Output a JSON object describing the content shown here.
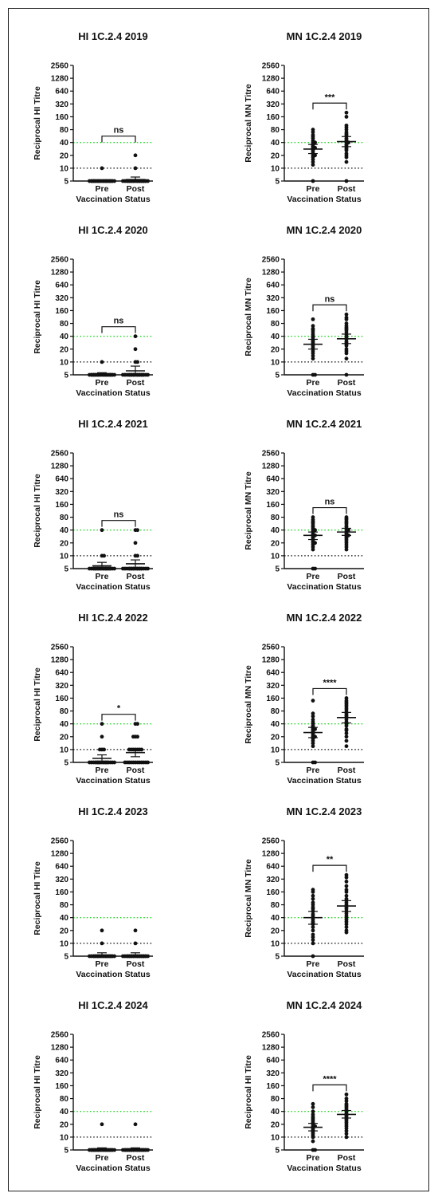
{
  "colors": {
    "axis": "#111111",
    "point": "#111111",
    "line_40": "#2bd62b",
    "line_10": "#111111"
  },
  "chart_data": [
    {
      "type": "scatter",
      "title": "HI 1C.2.4 2019",
      "xlabel": "Vaccination Status",
      "ylabel": "Reciprocal HI Titre",
      "yscale": "log2",
      "yticks": [
        5,
        10,
        20,
        40,
        80,
        160,
        320,
        640,
        1280,
        2560
      ],
      "ylim": [
        5,
        2560
      ],
      "categories": [
        "Pre",
        "Post"
      ],
      "reference_lines": [
        40,
        10
      ],
      "significance": "ns",
      "series": [
        {
          "values": [
            10,
            5,
            5,
            5,
            5,
            5,
            5,
            5,
            5,
            5,
            5,
            5,
            5,
            5,
            5,
            5,
            5,
            5,
            5,
            5,
            5,
            5,
            5,
            5
          ],
          "mean": 5.1,
          "err": [
            5,
            5.3
          ]
        },
        {
          "values": [
            20,
            10,
            5,
            5,
            5,
            5,
            5,
            5,
            5,
            5,
            5,
            5,
            5,
            5,
            5,
            5,
            5,
            5,
            5,
            5,
            5,
            5,
            5,
            5
          ],
          "mean": 5.4,
          "err": [
            5,
            6.2
          ]
        }
      ]
    },
    {
      "type": "scatter",
      "title": "MN 1C.2.4 2019",
      "xlabel": "Vaccination Status",
      "ylabel": "Reciprocal MN Titre",
      "yscale": "log2",
      "yticks": [
        5,
        10,
        20,
        40,
        80,
        160,
        320,
        640,
        1280,
        2560
      ],
      "ylim": [
        5,
        2560
      ],
      "categories": [
        "Pre",
        "Post"
      ],
      "reference_lines": [
        40,
        10
      ],
      "significance": "***",
      "series": [
        {
          "values": [
            5,
            12,
            14,
            16,
            18,
            20,
            20,
            22,
            24,
            26,
            28,
            30,
            30,
            32,
            34,
            36,
            40,
            40,
            44,
            50,
            55,
            60,
            70,
            80
          ],
          "mean": 28,
          "err": [
            22,
            36
          ]
        },
        {
          "values": [
            5,
            14,
            18,
            20,
            22,
            26,
            28,
            30,
            34,
            36,
            40,
            40,
            44,
            48,
            50,
            56,
            60,
            64,
            70,
            80,
            90,
            100,
            160,
            200
          ],
          "mean": 42,
          "err": [
            32,
            55
          ]
        }
      ]
    },
    {
      "type": "scatter",
      "title": "HI 1C.2.4 2020",
      "xlabel": "Vaccination Status",
      "ylabel": "Reciprocal HI Titre",
      "yscale": "log2",
      "yticks": [
        5,
        10,
        20,
        40,
        80,
        160,
        320,
        640,
        1280,
        2560
      ],
      "ylim": [
        5,
        2560
      ],
      "categories": [
        "Pre",
        "Post"
      ],
      "reference_lines": [
        40,
        10
      ],
      "significance": "ns",
      "series": [
        {
          "values": [
            10,
            5,
            5,
            5,
            5,
            5,
            5,
            5,
            5,
            5,
            5,
            5,
            5,
            5,
            5,
            5,
            5,
            5,
            5,
            5,
            5,
            5,
            5,
            5
          ],
          "mean": 5.2,
          "err": [
            5,
            5.6
          ]
        },
        {
          "values": [
            40,
            20,
            10,
            10,
            5,
            5,
            5,
            5,
            5,
            5,
            5,
            5,
            5,
            5,
            5,
            5,
            5,
            5,
            5,
            5,
            5,
            5,
            5,
            5
          ],
          "mean": 6.2,
          "err": [
            5,
            8
          ]
        }
      ]
    },
    {
      "type": "scatter",
      "title": "MN 1C.2.4 2020",
      "xlabel": "Vaccination Status",
      "ylabel": "Reciprocal MN Titre",
      "yscale": "log2",
      "yticks": [
        5,
        10,
        20,
        40,
        80,
        160,
        320,
        640,
        1280,
        2560
      ],
      "ylim": [
        5,
        2560
      ],
      "categories": [
        "Pre",
        "Post"
      ],
      "reference_lines": [
        40,
        10
      ],
      "significance": "ns",
      "series": [
        {
          "values": [
            5,
            5,
            12,
            14,
            16,
            18,
            20,
            22,
            24,
            26,
            28,
            30,
            32,
            34,
            38,
            40,
            44,
            50,
            56,
            60,
            70,
            100
          ],
          "mean": 26,
          "err": [
            20,
            34
          ]
        },
        {
          "values": [
            5,
            12,
            16,
            18,
            20,
            24,
            26,
            28,
            30,
            34,
            38,
            40,
            44,
            50,
            56,
            60,
            64,
            70,
            80,
            100,
            110,
            130
          ],
          "mean": 35,
          "err": [
            27,
            45
          ]
        }
      ]
    },
    {
      "type": "scatter",
      "title": "HI 1C.2.4 2021",
      "xlabel": "Vaccination Status",
      "ylabel": "Reciprocal HI Titre",
      "yscale": "log2",
      "yticks": [
        5,
        10,
        20,
        40,
        80,
        160,
        320,
        640,
        1280,
        2560
      ],
      "ylim": [
        5,
        2560
      ],
      "categories": [
        "Pre",
        "Post"
      ],
      "reference_lines": [
        40,
        10
      ],
      "significance": "ns",
      "series": [
        {
          "values": [
            40,
            10,
            10,
            5,
            5,
            5,
            5,
            5,
            5,
            5,
            5,
            5,
            5,
            5,
            5,
            5,
            5,
            5,
            5,
            5,
            5,
            5,
            5,
            5
          ],
          "mean": 5.8,
          "err": [
            5,
            7
          ]
        },
        {
          "values": [
            40,
            40,
            20,
            10,
            10,
            5,
            5,
            5,
            5,
            5,
            5,
            5,
            5,
            5,
            5,
            5,
            5,
            5,
            5,
            5,
            5,
            5,
            5,
            5
          ],
          "mean": 6.5,
          "err": [
            5,
            8
          ]
        }
      ]
    },
    {
      "type": "scatter",
      "title": "MN 1C.2.4 2021",
      "xlabel": "Vaccination Status",
      "ylabel": "Reciprocal MN Titre",
      "yscale": "log2",
      "yticks": [
        5,
        10,
        20,
        40,
        80,
        160,
        320,
        640,
        1280,
        2560
      ],
      "ylim": [
        5,
        2560
      ],
      "categories": [
        "Pre",
        "Post"
      ],
      "reference_lines": [
        40,
        10
      ],
      "significance": "ns",
      "series": [
        {
          "values": [
            5,
            5,
            14,
            16,
            18,
            20,
            20,
            22,
            24,
            26,
            28,
            30,
            30,
            32,
            36,
            40,
            40,
            44,
            48,
            50,
            56,
            60,
            64,
            70,
            80
          ],
          "mean": 30,
          "err": [
            24,
            36
          ]
        },
        {
          "values": [
            14,
            16,
            18,
            20,
            22,
            24,
            26,
            28,
            30,
            30,
            32,
            34,
            36,
            40,
            40,
            44,
            48,
            50,
            56,
            60,
            64,
            70,
            75,
            80
          ],
          "mean": 36,
          "err": [
            30,
            44
          ]
        }
      ]
    },
    {
      "type": "scatter",
      "title": "HI 1C.2.4 2022",
      "xlabel": "Vaccination Status",
      "ylabel": "Reciprocal HI Titre",
      "yscale": "log2",
      "yticks": [
        5,
        10,
        20,
        40,
        80,
        160,
        320,
        640,
        1280,
        2560
      ],
      "ylim": [
        5,
        2560
      ],
      "categories": [
        "Pre",
        "Post"
      ],
      "reference_lines": [
        40,
        10
      ],
      "significance": "*",
      "series": [
        {
          "values": [
            40,
            20,
            10,
            10,
            10,
            5,
            5,
            5,
            5,
            5,
            5,
            5,
            5,
            5,
            5,
            5,
            5,
            5,
            5,
            5,
            5,
            5,
            5,
            5
          ],
          "mean": 6.2,
          "err": [
            5,
            7.5
          ]
        },
        {
          "values": [
            40,
            40,
            20,
            20,
            20,
            10,
            10,
            10,
            10,
            10,
            10,
            10,
            5,
            5,
            5,
            5,
            5,
            5,
            5,
            5,
            5,
            5,
            5,
            5
          ],
          "mean": 8.5,
          "err": [
            6.8,
            10.5
          ]
        }
      ]
    },
    {
      "type": "scatter",
      "title": "MN 1C.2.4 2022",
      "xlabel": "Vaccination Status",
      "ylabel": "Reciprocal MN Titre",
      "yscale": "log2",
      "yticks": [
        5,
        10,
        20,
        40,
        80,
        160,
        320,
        640,
        1280,
        2560
      ],
      "ylim": [
        5,
        2560
      ],
      "categories": [
        "Pre",
        "Post"
      ],
      "reference_lines": [
        40,
        10
      ],
      "significance": "****",
      "series": [
        {
          "values": [
            5,
            5,
            12,
            14,
            16,
            18,
            20,
            20,
            22,
            24,
            26,
            28,
            30,
            30,
            32,
            34,
            36,
            40,
            44,
            50,
            60,
            70,
            140
          ],
          "mean": 25,
          "err": [
            19,
            33
          ]
        },
        {
          "values": [
            12,
            16,
            20,
            24,
            28,
            30,
            36,
            40,
            44,
            50,
            56,
            60,
            64,
            70,
            80,
            90,
            100,
            110,
            120,
            130,
            140,
            160
          ],
          "mean": 56,
          "err": [
            42,
            74
          ]
        }
      ]
    },
    {
      "type": "scatter",
      "title": "HI 1C.2.4 2023",
      "xlabel": "Vaccination Status",
      "ylabel": "Reciprocal HI Titre",
      "yscale": "log2",
      "yticks": [
        5,
        10,
        20,
        40,
        80,
        160,
        320,
        640,
        1280,
        2560
      ],
      "ylim": [
        5,
        2560
      ],
      "categories": [
        "Pre",
        "Post"
      ],
      "reference_lines": [
        40,
        10
      ],
      "series": [
        {
          "values": [
            20,
            10,
            5,
            5,
            5,
            5,
            5,
            5,
            5,
            5,
            5,
            5,
            5,
            5,
            5,
            5,
            5,
            5,
            5,
            5,
            5,
            5,
            5,
            5
          ],
          "mean": 5.2,
          "err": [
            5,
            6
          ]
        },
        {
          "values": [
            20,
            10,
            5,
            5,
            5,
            5,
            5,
            5,
            5,
            5,
            5,
            5,
            5,
            5,
            5,
            5,
            5,
            5,
            5,
            5,
            5,
            5,
            5,
            5
          ],
          "mean": 5.2,
          "err": [
            5,
            6
          ]
        }
      ]
    },
    {
      "type": "scatter",
      "title": "MN 1C.2.4 2023",
      "xlabel": "Vaccination Status",
      "ylabel": "Reciprocal MN Titre",
      "yscale": "log2",
      "yticks": [
        5,
        10,
        20,
        40,
        80,
        160,
        320,
        640,
        1280,
        2560
      ],
      "ylim": [
        5,
        2560
      ],
      "categories": [
        "Pre",
        "Post"
      ],
      "reference_lines": [
        40,
        10
      ],
      "significance": "**",
      "series": [
        {
          "values": [
            5,
            10,
            12,
            14,
            16,
            20,
            24,
            28,
            30,
            32,
            36,
            40,
            44,
            48,
            56,
            64,
            70,
            80,
            90,
            110,
            130,
            160,
            180
          ],
          "mean": 40,
          "err": [
            28,
            56
          ]
        },
        {
          "values": [
            18,
            20,
            24,
            28,
            32,
            36,
            40,
            44,
            50,
            56,
            64,
            70,
            80,
            90,
            100,
            110,
            130,
            160,
            180,
            220,
            280,
            350,
            400
          ],
          "mean": 75,
          "err": [
            56,
            100
          ]
        }
      ]
    },
    {
      "type": "scatter",
      "title": "HI 1C.2.4 2024",
      "xlabel": "Vaccination Status",
      "ylabel": "Reciprocal HI Titre",
      "yscale": "log2",
      "yticks": [
        5,
        10,
        20,
        40,
        80,
        160,
        320,
        640,
        1280,
        2560
      ],
      "ylim": [
        5,
        2560
      ],
      "categories": [
        "Pre",
        "Post"
      ],
      "reference_lines": [
        40,
        10
      ],
      "series": [
        {
          "values": [
            20,
            5,
            5,
            5,
            5,
            5,
            5,
            5,
            5,
            5,
            5,
            5,
            5,
            5,
            5,
            5,
            5,
            5,
            5,
            5,
            5,
            5,
            5,
            5
          ],
          "mean": 5.1,
          "err": [
            5,
            5.6
          ]
        },
        {
          "values": [
            20,
            5,
            5,
            5,
            5,
            5,
            5,
            5,
            5,
            5,
            5,
            5,
            5,
            5,
            5,
            5,
            5,
            5,
            5,
            5,
            5,
            5,
            5,
            5
          ],
          "mean": 5.1,
          "err": [
            5,
            5.6
          ]
        }
      ]
    },
    {
      "type": "scatter",
      "title": "MN 1C.2.4 2024",
      "xlabel": "Vaccination Status",
      "ylabel": "Reciprocal HI Titre",
      "yscale": "log2",
      "yticks": [
        5,
        10,
        20,
        40,
        80,
        160,
        320,
        640,
        1280,
        2560
      ],
      "ylim": [
        5,
        2560
      ],
      "categories": [
        "Pre",
        "Post"
      ],
      "reference_lines": [
        40,
        10
      ],
      "significance": "****",
      "series": [
        {
          "values": [
            5,
            5,
            8,
            10,
            11,
            12,
            13,
            14,
            15,
            16,
            17,
            18,
            18,
            20,
            22,
            24,
            26,
            28,
            30,
            34,
            40,
            50,
            60
          ],
          "mean": 17,
          "err": [
            14,
            21
          ]
        },
        {
          "values": [
            10,
            12,
            14,
            16,
            18,
            20,
            22,
            24,
            26,
            28,
            30,
            32,
            34,
            36,
            40,
            44,
            48,
            52,
            56,
            60,
            70,
            80,
            100
          ],
          "mean": 34,
          "err": [
            28,
            42
          ]
        }
      ]
    }
  ]
}
